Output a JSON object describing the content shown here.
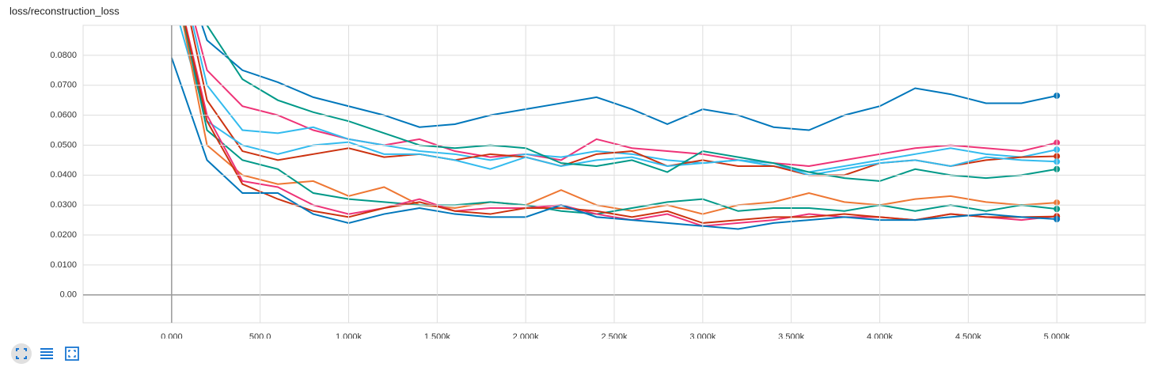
{
  "chart_data": {
    "type": "line",
    "title": "loss/reconstruction_loss",
    "x": [
      0,
      200,
      400,
      600,
      800,
      1000,
      1200,
      1400,
      1600,
      1800,
      2000,
      2200,
      2400,
      2600,
      2800,
      3000,
      3200,
      3400,
      3600,
      3800,
      4000,
      4200,
      4400,
      4600,
      4800,
      5000
    ],
    "xlim": [
      -500,
      5500
    ],
    "xticks": [
      {
        "value": 0,
        "label": "0.000"
      },
      {
        "value": 500,
        "label": "500.0"
      },
      {
        "value": 1000,
        "label": "1.000k"
      },
      {
        "value": 1500,
        "label": "1.500k"
      },
      {
        "value": 2000,
        "label": "2.000k"
      },
      {
        "value": 2500,
        "label": "2.500k"
      },
      {
        "value": 3000,
        "label": "3.000k"
      },
      {
        "value": 3500,
        "label": "3.500k"
      },
      {
        "value": 4000,
        "label": "4.000k"
      },
      {
        "value": 4500,
        "label": "4.500k"
      },
      {
        "value": 5000,
        "label": "5.000k"
      }
    ],
    "ylim": [
      -0.0093,
      0.09
    ],
    "yticks": [
      {
        "value": 0,
        "label": "0.00"
      },
      {
        "value": 0.01,
        "label": "0.0100"
      },
      {
        "value": 0.02,
        "label": "0.0200"
      },
      {
        "value": 0.03,
        "label": "0.0300"
      },
      {
        "value": 0.04,
        "label": "0.0400"
      },
      {
        "value": 0.05,
        "label": "0.0500"
      },
      {
        "value": 0.06,
        "label": "0.0600"
      },
      {
        "value": 0.07,
        "label": "0.0700"
      },
      {
        "value": 0.08,
        "label": "0.0800"
      }
    ],
    "grid": true,
    "series": [
      {
        "color": "#0077bb",
        "values": [
          0.12,
          0.085,
          0.075,
          0.071,
          0.066,
          0.063,
          0.06,
          0.056,
          0.057,
          0.06,
          0.062,
          0.064,
          0.066,
          0.062,
          0.057,
          0.062,
          0.06,
          0.056,
          0.055,
          0.06,
          0.063,
          0.069,
          0.067,
          0.064,
          0.064,
          0.0665
        ]
      },
      {
        "color": "#ee3377",
        "values": [
          0.12,
          0.075,
          0.063,
          0.06,
          0.055,
          0.052,
          0.05,
          0.052,
          0.048,
          0.046,
          0.047,
          0.045,
          0.052,
          0.049,
          0.048,
          0.047,
          0.045,
          0.044,
          0.043,
          0.045,
          0.047,
          0.049,
          0.05,
          0.049,
          0.048,
          0.0508
        ]
      },
      {
        "color": "#33bbee",
        "values": [
          0.12,
          0.07,
          0.055,
          0.054,
          0.056,
          0.052,
          0.05,
          0.048,
          0.047,
          0.045,
          0.047,
          0.046,
          0.048,
          0.047,
          0.045,
          0.044,
          0.045,
          0.043,
          0.041,
          0.043,
          0.045,
          0.047,
          0.049,
          0.047,
          0.046,
          0.0485
        ]
      },
      {
        "color": "#cc3311",
        "values": [
          0.12,
          0.065,
          0.048,
          0.045,
          0.047,
          0.049,
          0.046,
          0.047,
          0.045,
          0.047,
          0.046,
          0.043,
          0.047,
          0.048,
          0.043,
          0.045,
          0.043,
          0.043,
          0.04,
          0.04,
          0.044,
          0.045,
          0.043,
          0.045,
          0.046,
          0.0463
        ]
      },
      {
        "color": "#33bbee",
        "values": [
          0.1,
          0.058,
          0.05,
          0.047,
          0.05,
          0.051,
          0.047,
          0.047,
          0.045,
          0.042,
          0.046,
          0.043,
          0.045,
          0.046,
          0.043,
          0.044,
          0.045,
          0.044,
          0.04,
          0.042,
          0.044,
          0.045,
          0.043,
          0.046,
          0.045,
          0.0445
        ]
      },
      {
        "color": "#009988",
        "values": [
          0.12,
          0.09,
          0.072,
          0.065,
          0.061,
          0.058,
          0.054,
          0.05,
          0.049,
          0.05,
          0.049,
          0.044,
          0.043,
          0.045,
          0.041,
          0.048,
          0.046,
          0.044,
          0.041,
          0.039,
          0.038,
          0.042,
          0.04,
          0.039,
          0.04,
          0.042
        ]
      },
      {
        "color": "#ee7733",
        "values": [
          0.11,
          0.05,
          0.04,
          0.037,
          0.038,
          0.033,
          0.036,
          0.03,
          0.029,
          0.031,
          0.03,
          0.035,
          0.03,
          0.028,
          0.03,
          0.027,
          0.03,
          0.031,
          0.034,
          0.031,
          0.03,
          0.032,
          0.033,
          0.031,
          0.03,
          0.0308
        ]
      },
      {
        "color": "#009988",
        "values": [
          0.11,
          0.055,
          0.045,
          0.042,
          0.034,
          0.032,
          0.031,
          0.03,
          0.03,
          0.031,
          0.03,
          0.028,
          0.027,
          0.029,
          0.031,
          0.032,
          0.028,
          0.029,
          0.029,
          0.028,
          0.03,
          0.028,
          0.03,
          0.028,
          0.03,
          0.0287
        ]
      },
      {
        "color": "#ee3377",
        "values": [
          0.11,
          0.06,
          0.038,
          0.036,
          0.03,
          0.027,
          0.029,
          0.032,
          0.028,
          0.029,
          0.029,
          0.03,
          0.027,
          0.025,
          0.027,
          0.023,
          0.024,
          0.025,
          0.027,
          0.026,
          0.026,
          0.025,
          0.027,
          0.026,
          0.025,
          0.0263
        ]
      },
      {
        "color": "#cc3311",
        "values": [
          0.11,
          0.058,
          0.037,
          0.032,
          0.028,
          0.026,
          0.029,
          0.031,
          0.028,
          0.027,
          0.029,
          0.029,
          0.028,
          0.026,
          0.028,
          0.024,
          0.025,
          0.026,
          0.026,
          0.027,
          0.026,
          0.025,
          0.027,
          0.026,
          0.026,
          0.0262
        ]
      },
      {
        "color": "#0077bb",
        "values": [
          0.0792,
          0.045,
          0.034,
          0.034,
          0.027,
          0.024,
          0.027,
          0.029,
          0.027,
          0.026,
          0.026,
          0.03,
          0.026,
          0.025,
          0.024,
          0.023,
          0.022,
          0.024,
          0.025,
          0.026,
          0.025,
          0.025,
          0.026,
          0.027,
          0.026,
          0.0253
        ]
      }
    ]
  }
}
